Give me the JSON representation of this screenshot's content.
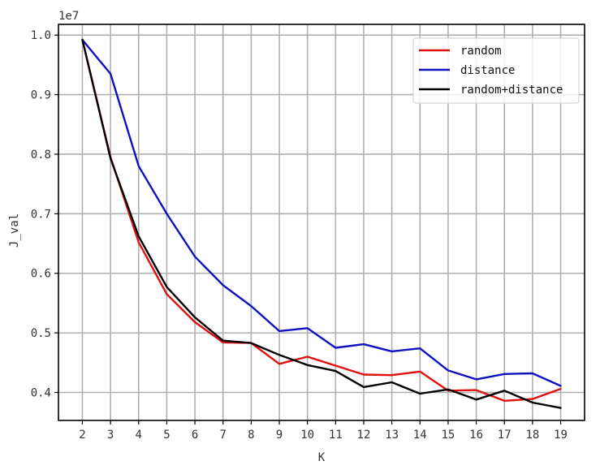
{
  "chart_data": {
    "type": "line",
    "title": "",
    "xlabel": "K",
    "ylabel": "J_val",
    "y_offset_label": "1e7",
    "x": [
      2,
      3,
      4,
      5,
      6,
      7,
      8,
      9,
      10,
      11,
      12,
      13,
      14,
      15,
      16,
      17,
      18,
      19
    ],
    "x_ticks": [
      "2",
      "3",
      "4",
      "5",
      "6",
      "7",
      "8",
      "9",
      "10",
      "11",
      "12",
      "13",
      "14",
      "15",
      "16",
      "17",
      "18",
      "19"
    ],
    "y_ticks": [
      {
        "value": 0.4,
        "label": "0.4"
      },
      {
        "value": 0.5,
        "label": "0.5"
      },
      {
        "value": 0.6,
        "label": "0.6"
      },
      {
        "value": 0.7,
        "label": "0.7"
      },
      {
        "value": 0.8,
        "label": "0.8"
      },
      {
        "value": 0.9,
        "label": "0.9"
      },
      {
        "value": 1.0,
        "label": "1.0"
      }
    ],
    "xlim": [
      1.15,
      19.85
    ],
    "ylim": [
      0.353,
      1.018
    ],
    "grid": true,
    "legend_position": "top-right",
    "series": [
      {
        "name": "random",
        "color": "#e01010",
        "values": [
          0.992,
          0.795,
          0.652,
          0.565,
          0.518,
          0.484,
          0.483,
          0.448,
          0.46,
          0.445,
          0.43,
          0.429,
          0.435,
          0.403,
          0.404,
          0.386,
          0.389,
          0.406
        ]
      },
      {
        "name": "distance",
        "color": "#1010c0",
        "values": [
          0.992,
          0.935,
          0.78,
          0.7,
          0.628,
          0.58,
          0.545,
          0.503,
          0.508,
          0.475,
          0.481,
          0.469,
          0.474,
          0.437,
          0.422,
          0.431,
          0.432,
          0.411
        ]
      },
      {
        "name": "random+distance",
        "color": "#000000",
        "values": [
          0.992,
          0.793,
          0.662,
          0.577,
          0.526,
          0.487,
          0.483,
          0.463,
          0.446,
          0.436,
          0.409,
          0.417,
          0.398,
          0.405,
          0.388,
          0.403,
          0.383,
          0.374
        ]
      }
    ]
  }
}
